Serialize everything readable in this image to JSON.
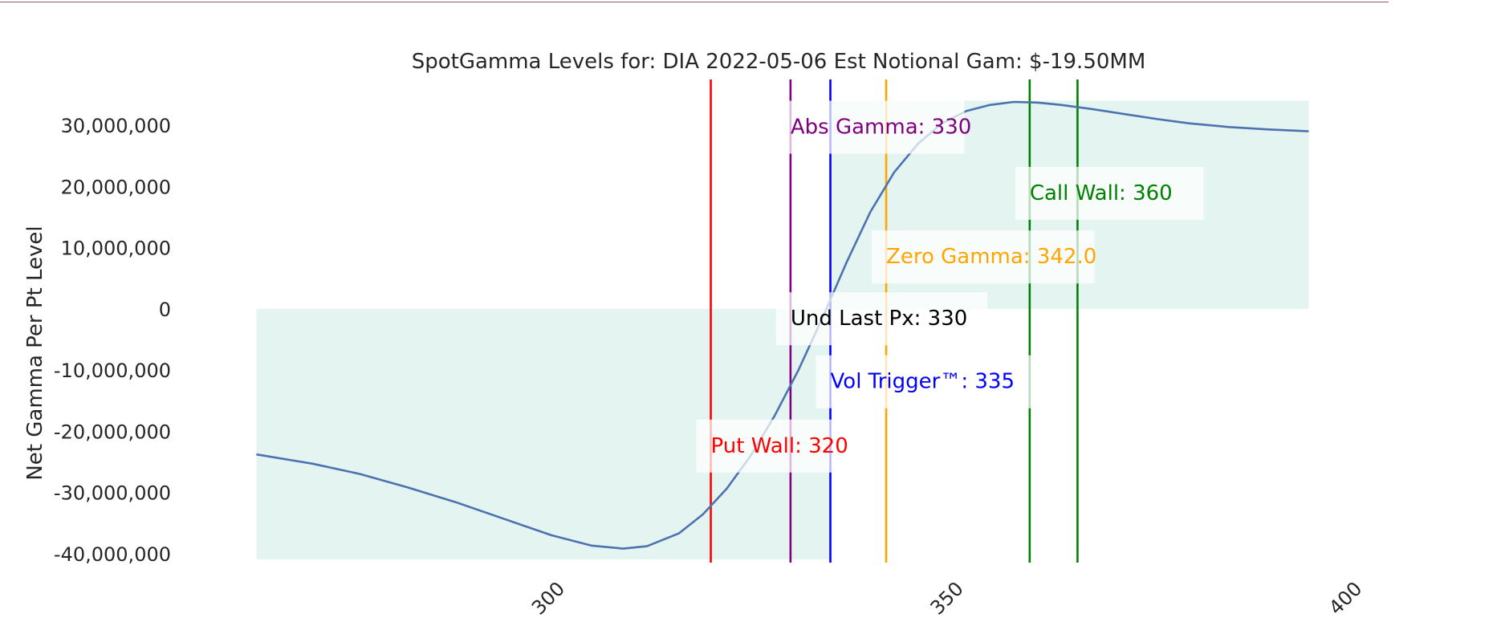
{
  "chart_data": {
    "type": "area",
    "title": "SpotGamma Levels for: DIA  2022-05-06 Est Notional Gam: $-19.50MM",
    "ylabel": "Net Gamma Per Pt Level",
    "xlabel": "",
    "xlim": [
      254,
      402
    ],
    "ylim": [
      -42000000,
      38000000
    ],
    "grid": false,
    "x_ticks": [
      300,
      350,
      400
    ],
    "y_ticks": [
      30000000,
      20000000,
      10000000,
      0,
      -10000000,
      -20000000,
      -30000000,
      -40000000
    ],
    "x_tick_labels": [
      "300",
      "350",
      "400"
    ],
    "y_tick_labels": [
      "30,000,000",
      "20,000,000",
      "10,000,000",
      "0",
      "-10,000,000",
      "-20,000,000",
      "-30,000,000",
      "-40,000,000"
    ],
    "series": [
      {
        "color": "#4c72b0",
        "fill_color": "#e4f4f1",
        "x": [
          263,
          270,
          276,
          282,
          288,
          294,
          300,
          305,
          309,
          312,
          316,
          319,
          322,
          325,
          328,
          331,
          334,
          337,
          340,
          343,
          346,
          349,
          352,
          355,
          358,
          361,
          364,
          368,
          372,
          376,
          380,
          385,
          390,
          395,
          393.5
        ],
        "y": [
          -23800000,
          -25300000,
          -27000000,
          -29200000,
          -31600000,
          -34300000,
          -37000000,
          -38700000,
          -39200000,
          -38800000,
          -36700000,
          -33600000,
          -29400000,
          -24000000,
          -17500000,
          -10000000,
          -1500000,
          7500000,
          15800000,
          22300000,
          27000000,
          30300000,
          32300000,
          33300000,
          33800000,
          33700000,
          33300000,
          32600000,
          31800000,
          31000000,
          30300000,
          29700000,
          29300000,
          29000000,
          29200000
        ]
      }
    ],
    "levels": [
      {
        "name": "Put Wall",
        "x": 320,
        "color": "#ff0000",
        "label": "Put Wall: 320",
        "label_y": -22300000
      },
      {
        "name": "Abs Gamma",
        "x": 330,
        "color": "#800080",
        "label": "Abs Gamma: 330",
        "label_y": 29800000
      },
      {
        "name": "Und Last Px",
        "x": 330,
        "color": "#000000",
        "label": "Und Last Px: 330",
        "label_y": -1500000,
        "no_line": true
      },
      {
        "name": "Vol Trigger",
        "x": 335,
        "color": "#0000ff",
        "label": "Vol Trigger™: 335",
        "label_y": -11800000
      },
      {
        "name": "Zero Gamma",
        "x": 342,
        "color": "#ffa500",
        "label": "Zero Gamma: 342.0",
        "label_y": 8600000
      },
      {
        "name": "Call Wall",
        "x": 360,
        "color": "#008000",
        "label": "Call Wall: 360",
        "label_y": 19000000
      },
      {
        "name": "Call Wall 2",
        "x": 366,
        "color": "#008000",
        "label": "",
        "label_y": 0
      }
    ]
  }
}
